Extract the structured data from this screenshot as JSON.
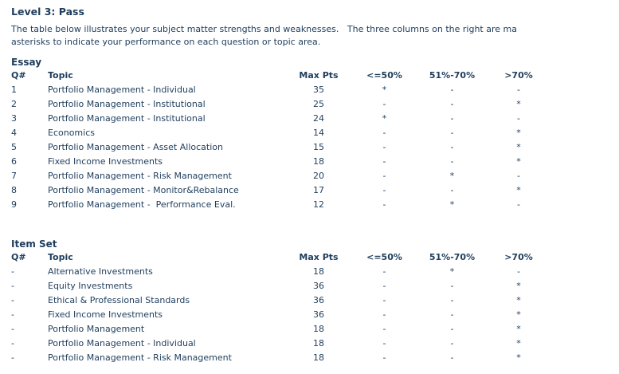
{
  "page": {
    "title": "Level 3: Pass",
    "intro_line1": "The table below illustrates your subject matter strengths and weaknesses.   The three columns on the right are ma",
    "intro_line2": "asterisks to indicate your performance on each question or topic area.",
    "text_color": "#1e3d5c",
    "background_color": "#ffffff"
  },
  "essay": {
    "heading": "Essay",
    "columns": [
      "Q#",
      "Topic",
      "Max Pts",
      "<=50%",
      "51%-70%",
      ">70%"
    ],
    "rows": [
      [
        "1",
        "Portfolio Management - Individual",
        "35",
        "*",
        "-",
        "-"
      ],
      [
        "2",
        "Portfolio Management - Institutional",
        "25",
        "-",
        "-",
        "*"
      ],
      [
        "3",
        "Portfolio Management - Institutional",
        "24",
        "*",
        "-",
        "-"
      ],
      [
        "4",
        "Economics",
        "14",
        "-",
        "-",
        "*"
      ],
      [
        "5",
        "Portfolio Management - Asset Allocation",
        "15",
        "-",
        "-",
        "*"
      ],
      [
        "6",
        "Fixed Income Investments",
        "18",
        "-",
        "-",
        "*"
      ],
      [
        "7",
        "Portfolio Management - Risk Management",
        "20",
        "-",
        "*",
        "-"
      ],
      [
        "8",
        "Portfolio Management - Monitor&Rebalance",
        "17",
        "-",
        "-",
        "*"
      ],
      [
        "9",
        "Portfolio Management -  Performance Eval.",
        "12",
        "-",
        "*",
        "-"
      ]
    ]
  },
  "item_set": {
    "heading": "Item Set",
    "columns": [
      "Q#",
      "Topic",
      "Max Pts",
      "<=50%",
      "51%-70%",
      ">70%"
    ],
    "rows": [
      [
        "-",
        "Alternative Investments",
        "18",
        "-",
        "*",
        "-"
      ],
      [
        "-",
        "Equity Investments",
        "36",
        "-",
        "-",
        "*"
      ],
      [
        "-",
        "Ethical & Professional Standards",
        "36",
        "-",
        "-",
        "*"
      ],
      [
        "-",
        "Fixed Income Investments",
        "36",
        "-",
        "-",
        "*"
      ],
      [
        "-",
        "Portfolio Management",
        "18",
        "-",
        "-",
        "*"
      ],
      [
        "-",
        "Portfolio Management - Individual",
        "18",
        "-",
        "-",
        "*"
      ],
      [
        "-",
        "Portfolio Management - Risk Management",
        "18",
        "-",
        "-",
        "*"
      ]
    ]
  }
}
